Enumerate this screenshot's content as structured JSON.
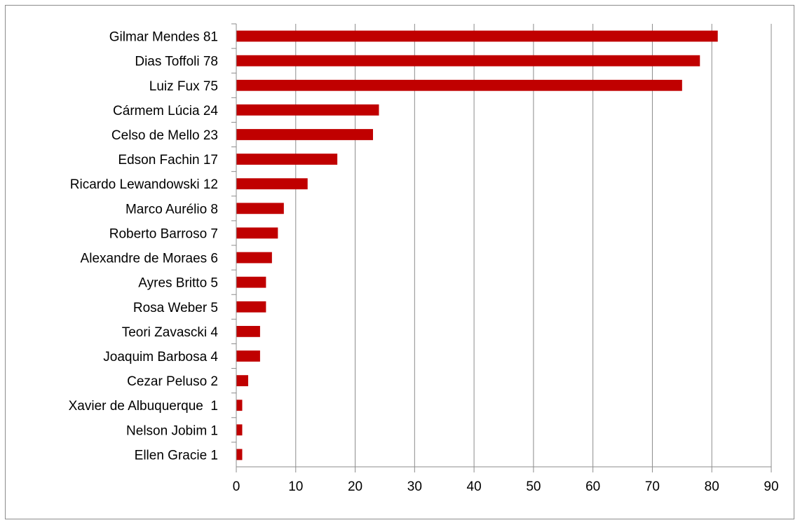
{
  "chart_data": {
    "type": "bar",
    "orientation": "horizontal",
    "categories": [
      "Gilmar Mendes 81",
      "Dias Toffoli 78",
      "Luiz Fux 75",
      "Cármem Lúcia 24",
      "Celso de Mello 23",
      "Edson Fachin 17",
      "Ricardo Lewandowski 12",
      "Marco Aurélio 8",
      "Roberto Barroso 7",
      "Alexandre de Moraes 6",
      "Ayres Britto 5",
      "Rosa Weber 5",
      "Teori Zavascki 4",
      "Joaquim Barbosa 4",
      "Cezar Peluso 2",
      "Xavier de Albuquerque  1",
      "Nelson Jobim 1",
      "Ellen Gracie 1"
    ],
    "values": [
      81,
      78,
      75,
      24,
      23,
      17,
      12,
      8,
      7,
      6,
      5,
      5,
      4,
      4,
      2,
      1,
      1,
      1
    ],
    "xlim": [
      0,
      90
    ],
    "x_ticks": [
      "0",
      "10",
      "20",
      "30",
      "40",
      "50",
      "60",
      "70",
      "80",
      "90"
    ],
    "grid": "vertical",
    "legend": "none",
    "title": "",
    "xlabel": "",
    "ylabel": "",
    "bar_color": "#c00000",
    "grid_color": "#8c8c8c"
  }
}
